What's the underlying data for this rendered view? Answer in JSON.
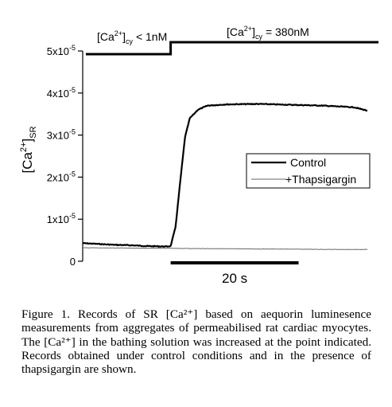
{
  "chart_data": {
    "type": "line",
    "ylabel_main": "[Ca",
    "ylabel_sup": "2+",
    "ylabel_close": "]",
    "ylabel_sub": "SR",
    "ylim": [
      0,
      5e-05
    ],
    "yticks": [
      {
        "value": 0,
        "label": "0",
        "exp": ""
      },
      {
        "value": 1e-05,
        "label": "1x10",
        "exp": "-5"
      },
      {
        "value": 2e-05,
        "label": "2x10",
        "exp": "-5"
      },
      {
        "value": 3e-05,
        "label": "3x10",
        "exp": "-5"
      },
      {
        "value": 4e-05,
        "label": "4x10",
        "exp": "-5"
      },
      {
        "value": 5e-05,
        "label": "5x10",
        "exp": "-5"
      }
    ],
    "series": [
      {
        "name": "Control",
        "color": "#000000",
        "points": [
          [
            0,
            4.3e-06
          ],
          [
            10,
            4.1e-06
          ],
          [
            20,
            3.9e-06
          ],
          [
            30,
            3.8e-06
          ],
          [
            40,
            3.6e-06
          ],
          [
            52,
            3.5e-06
          ],
          [
            55,
            3.6e-06
          ],
          [
            58,
            8e-06
          ],
          [
            61,
            1.9e-05
          ],
          [
            64,
            2.95e-05
          ],
          [
            67,
            3.4e-05
          ],
          [
            72,
            3.6e-05
          ],
          [
            78,
            3.7e-05
          ],
          [
            90,
            3.73e-05
          ],
          [
            110,
            3.74e-05
          ],
          [
            130,
            3.72e-05
          ],
          [
            150,
            3.7e-05
          ],
          [
            170,
            3.66e-05
          ],
          [
            178,
            3.58e-05
          ]
        ]
      },
      {
        "name": "+Thapsigargin",
        "color": "#666666",
        "points": [
          [
            0,
            3.2e-06
          ],
          [
            40,
            3.1e-06
          ],
          [
            80,
            3e-06
          ],
          [
            120,
            2.9e-06
          ],
          [
            160,
            2.8e-06
          ],
          [
            178,
            2.8e-06
          ]
        ]
      }
    ],
    "legend": {
      "position": "right",
      "entries": [
        "Control",
        "+Thapsigargin"
      ]
    },
    "stimulus": {
      "before_label": "[Ca",
      "before_sup": "2+",
      "before_sub": "cy",
      "before_value": "< 1nM",
      "after_label": "[Ca",
      "after_sup": "2+",
      "after_sub": "cy",
      "after_value": "= 380nM",
      "step_x": 55
    },
    "scalebar": {
      "label": "20 s",
      "x_start": 55,
      "x_end": 135
    }
  },
  "caption": "Figure 1. Records of SR [Ca²⁺] based on aequorin luminesence measurements from aggregates of permeabilised rat cardiac myocytes. The [Ca²⁺] in the bathing solution was increased at the point indicated. Records obtained under control conditions and in the presence of thapsigargin are shown."
}
